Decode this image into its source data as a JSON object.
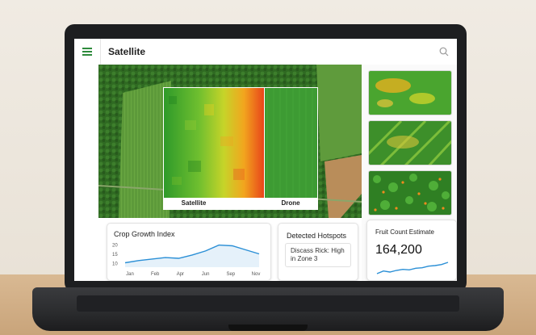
{
  "app": {
    "title": "Satellite"
  },
  "map": {
    "labels": {
      "left": "Satellite",
      "right": "Drone"
    }
  },
  "growth_card": {
    "title": "Crop Growth Index",
    "chart_data": {
      "type": "line",
      "title": "Crop Growth Index",
      "categories": [
        "Jan",
        "Feb",
        "Apr",
        "Jun",
        "Sep",
        "Nov"
      ],
      "y_ticks": [
        10,
        15,
        20
      ],
      "x": [
        0,
        1,
        2,
        3,
        4,
        5,
        6,
        7,
        8,
        9,
        10
      ],
      "values": [
        10.4,
        11.6,
        12.4,
        13.2,
        12.8,
        14.6,
        16.8,
        20.0,
        19.6,
        17.4,
        15.2
      ],
      "ylim": [
        8,
        22
      ],
      "line_color": "#2a8fd6"
    }
  },
  "hotspot_card": {
    "title": "Detected Hotspots",
    "text": "Discass Rick: High in Zone 3"
  },
  "fruit_card": {
    "title": "Fruit Count Estimate",
    "value": "164,200",
    "chart_data": {
      "type": "line",
      "values": [
        2,
        3,
        2.6,
        3.2,
        3.6,
        3.4,
        4,
        4.2,
        4.8,
        5,
        5.4,
        6.2
      ],
      "line_color": "#2a8fd6"
    }
  },
  "colors": {
    "accent": "#2e8b3c",
    "line": "#2a8fd6"
  }
}
